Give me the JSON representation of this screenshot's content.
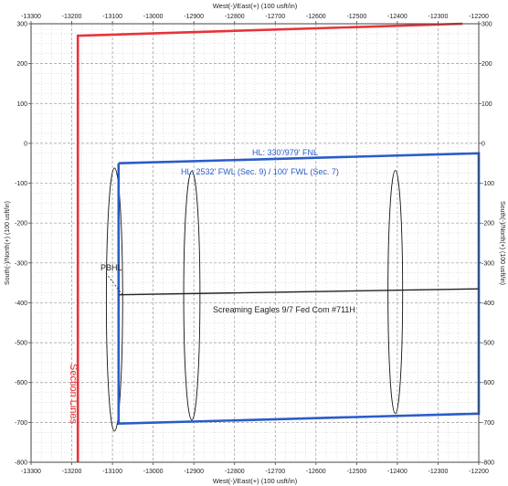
{
  "chart_data": {
    "type": "line",
    "top_axis_label": "West(-)/East(+) (100 usft/in)",
    "bottom_axis_label": "West(-)/East(+) (100 usft/in)",
    "left_axis_label": "South(-)/North(+) (100 usft/in)",
    "right_axis_label": "South(-)/North(+) (100 usft/in)",
    "xlim": [
      -13300,
      -12200
    ],
    "ylim": [
      -800,
      300
    ],
    "x_ticks": [
      -13300,
      -13200,
      -13100,
      -13000,
      -12900,
      -12800,
      -12700,
      -12600,
      -12500,
      -12400,
      -12300,
      -12200
    ],
    "y_ticks": [
      300,
      200,
      100,
      0,
      -100,
      -200,
      -300,
      -400,
      -500,
      -600,
      -700,
      -800
    ],
    "grid": true,
    "lines": [
      {
        "role": "section-lines",
        "color": "#e8333a",
        "points": [
          [
            -13185,
            -800
          ],
          [
            -13185,
            270
          ],
          [
            -12240,
            300
          ]
        ]
      },
      {
        "role": "hardline",
        "color": "#2a5cc9",
        "points": [
          [
            -13085,
            -50
          ],
          [
            -12200,
            -25
          ],
          [
            -12200,
            -678
          ],
          [
            -13085,
            -703
          ],
          [
            -13085,
            -50
          ]
        ]
      },
      {
        "role": "wellbore",
        "color": "#222222",
        "points": [
          [
            -13085,
            -380
          ],
          [
            -12200,
            -365
          ]
        ]
      }
    ],
    "ellipses": [
      {
        "cx": -13095,
        "cy": -392,
        "rx": 20,
        "ry": 330
      },
      {
        "cx": -12905,
        "cy": -382,
        "rx": 20,
        "ry": 312
      },
      {
        "cx": -12405,
        "cy": -373,
        "rx": 18,
        "ry": 305
      }
    ],
    "annotations": {
      "hl_fnl": "HL: 330'/979' FNL",
      "hl_fwl": "HL: 2532' FWL (Sec. 9) / 100' FWL (Sec. 7)",
      "pbhl": "PBHL",
      "well_name": "Screaming Eagles 9/7 Fed Com #711H",
      "section_lines": "Section Lines"
    },
    "colors": {
      "section": "#e8333a",
      "hardline": "#2a5cc9",
      "wellbore": "#222222",
      "grid": "#9a9a9a"
    }
  }
}
